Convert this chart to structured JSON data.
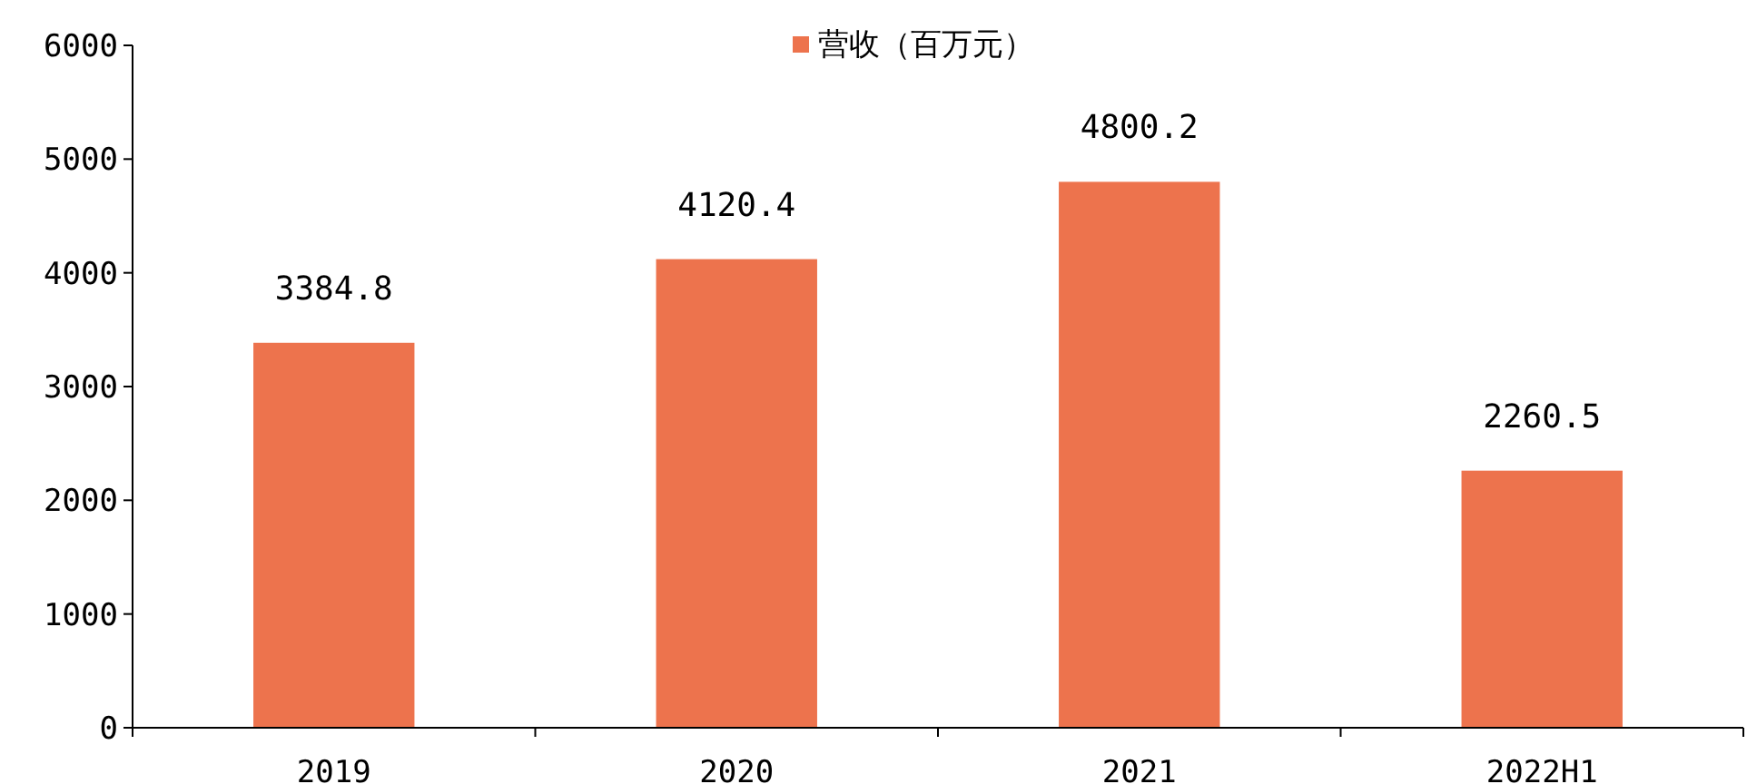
{
  "chart_data": {
    "type": "bar",
    "categories": [
      "2019",
      "2020",
      "2021",
      "2022H1"
    ],
    "series": [
      {
        "name": "营收（百万元）",
        "color": "#ed734d",
        "values": [
          3384.8,
          4120.4,
          4800.2,
          2260.5
        ]
      }
    ],
    "ylim": [
      0,
      6000
    ],
    "yticks": [
      0,
      1000,
      2000,
      3000,
      4000,
      5000,
      6000
    ],
    "data_labels": true,
    "legend": "top",
    "grid": false
  }
}
